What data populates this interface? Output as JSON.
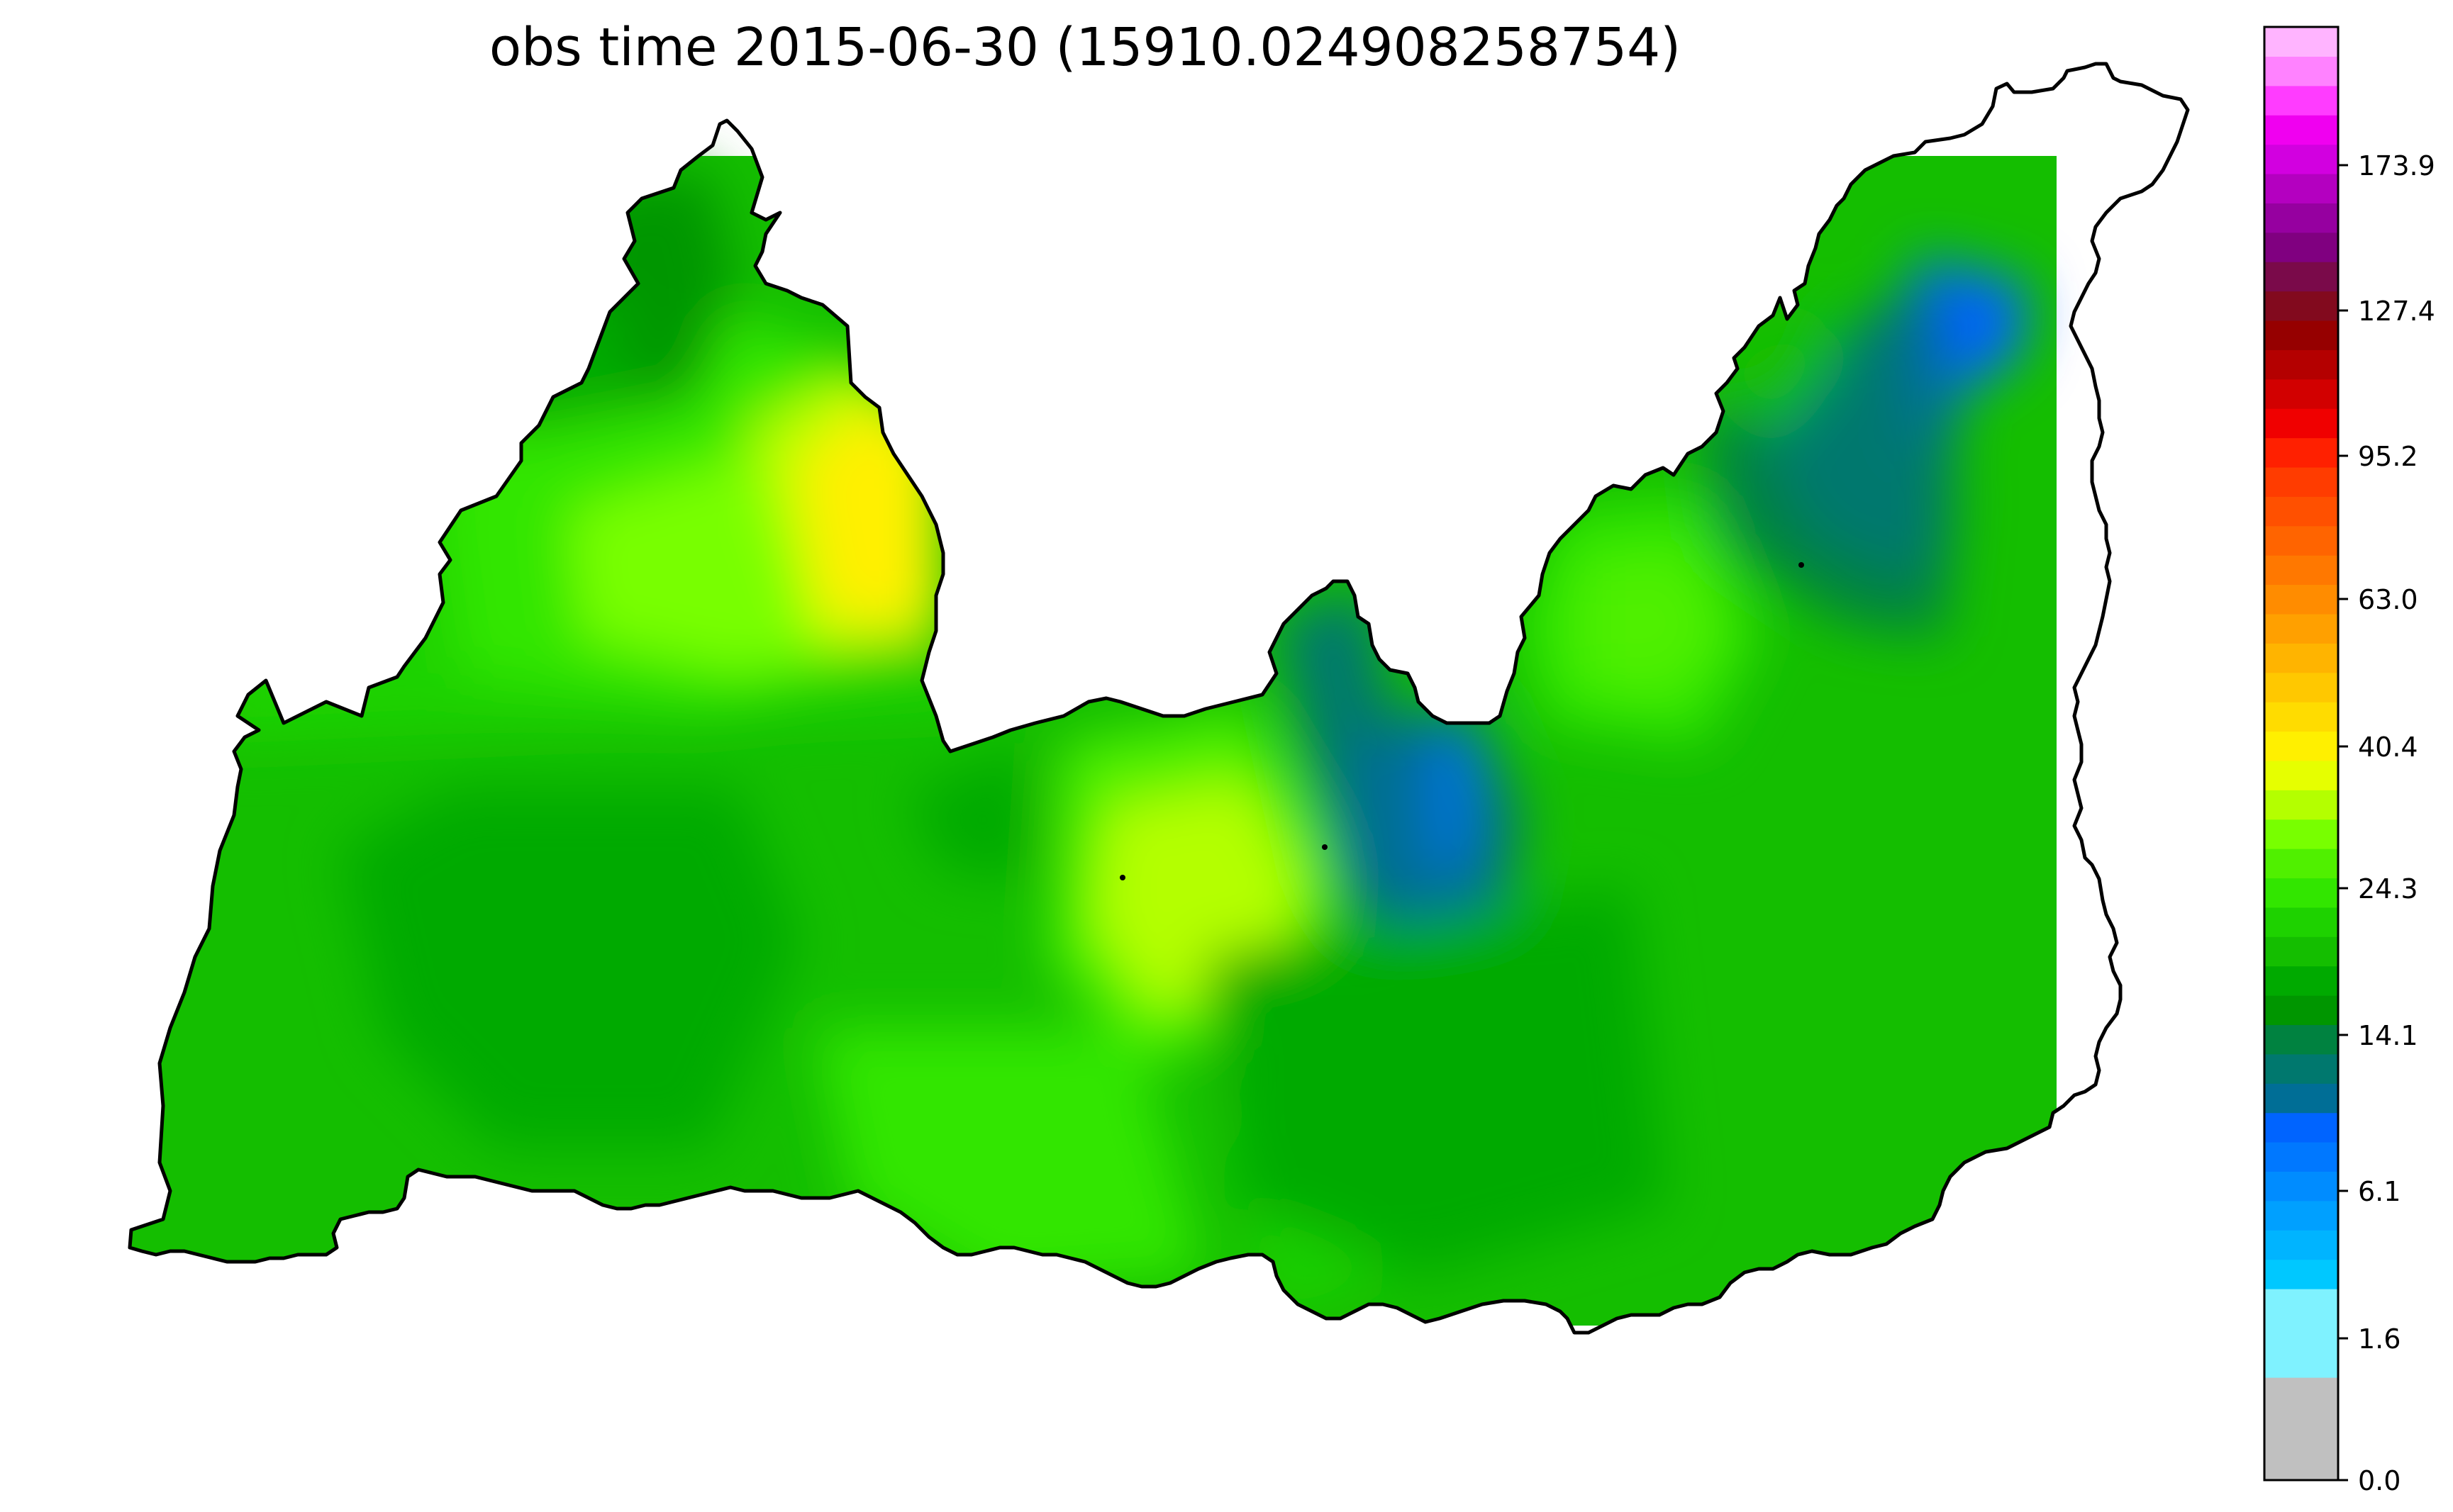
{
  "title": "obs time 2015-06-30 (15910.024908258754)",
  "colorbar": {
    "tick_labels": [
      "0.0",
      "1.6",
      "6.1",
      "14.1",
      "24.3",
      "40.4",
      "63.0",
      "95.2",
      "127.4",
      "173.9"
    ],
    "bands": [
      "#c0c0c0",
      "#7ff2ff",
      "#00c8ff",
      "#00b4ff",
      "#00a0ff",
      "#008cff",
      "#0078ff",
      "#0064ff",
      "#006e96",
      "#00786e",
      "#008240",
      "#009600",
      "#00aa00",
      "#14be00",
      "#1ed200",
      "#32e600",
      "#50f000",
      "#78ff00",
      "#b4ff00",
      "#e6ff00",
      "#fff000",
      "#ffdc00",
      "#ffc800",
      "#ffb400",
      "#ffa000",
      "#ff8c00",
      "#ff7800",
      "#ff6400",
      "#ff5000",
      "#ff3c00",
      "#ff2000",
      "#f00000",
      "#d20000",
      "#b40000",
      "#960000",
      "#820a1e",
      "#7a0a4a",
      "#800080",
      "#9600a0",
      "#b400c0",
      "#d200e0",
      "#f000f0",
      "#ff3cff",
      "#ff82ff",
      "#ffb4ff"
    ]
  },
  "map": {
    "outline_color": "#000000",
    "description_colors": {
      "low_blue": "#0064ff",
      "teal": "#00786e",
      "dark_green": "#009600",
      "green": "#14be00",
      "light_green": "#32e600",
      "yellow_green": "#b4ff00",
      "yellow": "#fff000"
    }
  }
}
